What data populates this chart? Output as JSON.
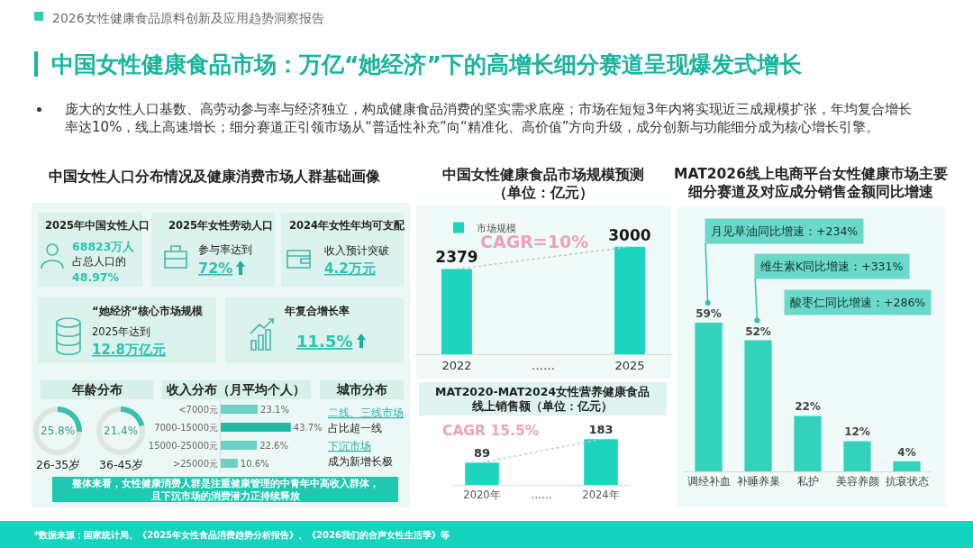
{
  "chart_data": [
    {
      "type": "other",
      "title": "中国女性健康食品市场：万亿“她经济”下的高增长细分赛道呈现爆发式增长",
      "subtitle": "2026女性健康食品原料创新及应用趋势洞察报告",
      "annotations": [
        "庞大的女性人口基数、高劳动参与率与经济独立，构成健康食品消费的坚实需求底座；市场在短短3年内将实现近三成规模扩张，年均复合增长率达10%，线上高速增长；细分赛道正引领市场从“普适性补充”向“精准化、高价值”方向升级，成分创新与功能细分成为核心增长引擎。",
        "*数据来源：国家统计局、《2025年女性食品消费趋势分析报告》、《2026我们的合声女性生活季》等"
      ]
    },
    {
      "type": "other",
      "title": "中国女性人口分布情况及健康消费市场人群基础画像",
      "annotations": [
        "2025年中国女性人口",
        "68823万人",
        "占总人口的",
        "48.97%",
        "2025年女性劳动人口",
        "参与率达到",
        "72%",
        "2024年女性年均可支配",
        "收入预计突破",
        "4.2万元",
        "“她经济“核心市场规模",
        "2025年达到",
        "12.8万亿元",
        "年复合增长率",
        "11.5%"
      ]
    },
    {
      "type": "donut",
      "title": "年龄分布",
      "categories": [
        null,
        null
      ],
      "values": [
        25.8,
        74.2
      ],
      "colors": [
        "#3dbfae",
        "#dfe5e4"
      ],
      "value_labels": [
        "25.8%",
        null
      ],
      "annotations": [
        "26-35岁"
      ]
    },
    {
      "type": "donut",
      "categories": [
        null,
        null
      ],
      "values": [
        21.4,
        78.6
      ],
      "colors": [
        "#3dbfae",
        "#dfe5e4"
      ],
      "value_labels": [
        "21.4%",
        null
      ],
      "annotations": [
        "36-45岁"
      ]
    },
    {
      "type": "bar",
      "orientation": "horizontal",
      "title": "收入分布（月平均个人）",
      "categories": [
        "<7000元",
        "7000-15000元",
        "15000-25000元",
        ">25000元"
      ],
      "values": [
        23.1,
        43.7,
        22.6,
        10.6
      ],
      "colors": [
        "#6fd1c5",
        "#22b8a5",
        "#6fd1c5",
        "#6fd1c5"
      ],
      "value_labels": [
        "23.1%",
        "43.7%",
        "22.6%",
        "10.6%"
      ],
      "tick_labels": "y"
    },
    {
      "type": "other",
      "title": "城市分布",
      "annotations": [
        "二线、三线市场",
        "占比超一线",
        "下沉市场",
        "成为新增长极",
        "整体来看，女性健康消费人群是注重健康管理的中青年中高收入群体，且下沉市场的消费潜力正持续释放"
      ]
    },
    {
      "type": "bar",
      "title": "中国女性健康食品市场规模预测（单位：亿元）",
      "x": [
        2022,
        2025
      ],
      "xlim": [
        2021.25,
        2025.75
      ],
      "xticks": [
        2022,
        {
          "value": 2023.5,
          "label": "……"
        },
        2025
      ],
      "series": [
        {
          "name": "市场规模",
          "color": "#1dd5be",
          "values": [
            2379,
            3000
          ],
          "value_labels": [
            "2379",
            "3000"
          ]
        },
        {
          "type": "line",
          "values": [
            2379,
            3000
          ],
          "color": "#c6c6c6",
          "line_style": "dotted"
        }
      ],
      "legend": "top left",
      "tick_labels": "x",
      "annotations": [
        "CAGR=10%"
      ]
    },
    {
      "type": "bar",
      "title": "MAT2020-MAT2024女性营养健康食品线上销售额（单位：亿元）",
      "categories": [
        "2020年",
        "……",
        "2024年"
      ],
      "series": [
        {
          "color": "#1dd5be",
          "values": [
            89,
            null,
            183
          ],
          "value_labels": [
            "89",
            null,
            "183"
          ]
        },
        {
          "type": "line",
          "x": [
            "2020年",
            "2024年"
          ],
          "values": [
            89,
            183
          ],
          "color": "#c6c6c6",
          "line_style": "dotted"
        }
      ],
      "tick_labels": "x",
      "annotations": [
        "CAGR 15.5%"
      ]
    },
    {
      "type": "bar",
      "title": "MAT2026线上电商平台女性健康市场主要细分赛道及对应成分销售金额同比增速",
      "categories": [
        "调经补血",
        "补睡养巢",
        "私护",
        "美容养颜",
        "抗衰状态"
      ],
      "values": [
        59,
        52,
        22,
        12,
        4
      ],
      "value_labels": [
        "59%",
        "52%",
        "22%",
        "12%",
        "4%"
      ],
      "color": "#34d2bc",
      "tick_labels": "x",
      "annotations": [
        {
          "text": "月见草油同比增速：+234%",
          "x": "调经补血",
          "y": 59
        },
        {
          "text": "维生素K同比增速：+331%",
          "x": "补睡养巢",
          "y": 52
        },
        "酸枣仁同比增速：+286%"
      ]
    }
  ]
}
